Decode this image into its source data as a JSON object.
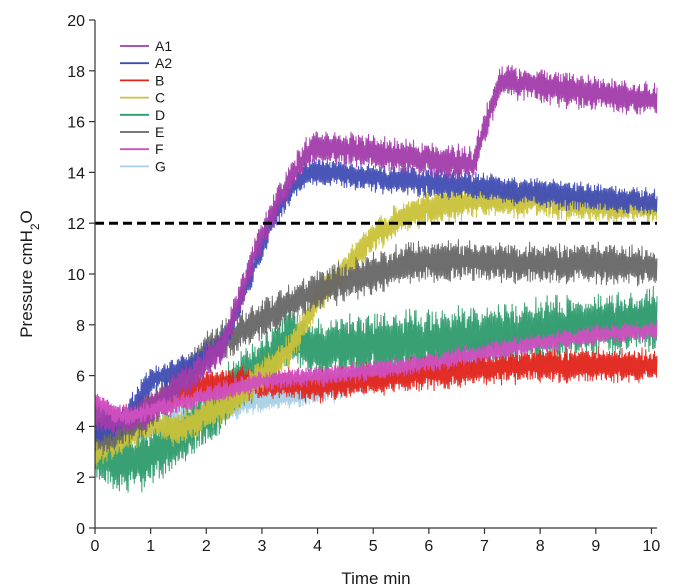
{
  "chart_data": {
    "type": "line",
    "xlabel": "Time min",
    "ylabel": "Pressure cmH",
    "ylabel_sub": "2",
    "ylabel_tail": "O",
    "xlim": [
      0,
      10.1
    ],
    "ylim": [
      0,
      20
    ],
    "xticks": [
      "0",
      "1",
      "2",
      "3",
      "4",
      "5",
      "6",
      "7",
      "8",
      "9",
      "10"
    ],
    "yticks": [
      "0",
      "2",
      "4",
      "6",
      "8",
      "10",
      "12",
      "14",
      "16",
      "18",
      "20"
    ],
    "reference_line": {
      "y": 12,
      "style": "dashed",
      "color": "#000000"
    },
    "legend_position": "top-left",
    "series": [
      {
        "name": "A1",
        "color": "#a23bab",
        "amp": 0.6,
        "hf": 0.35,
        "x": [
          0,
          0.5,
          1.0,
          1.5,
          2.0,
          2.3,
          2.6,
          2.9,
          3.2,
          3.5,
          3.8,
          4.0,
          5.0,
          6.0,
          6.8,
          7.0,
          7.3,
          8.0,
          9.0,
          10.1
        ],
        "y": [
          4.5,
          4.2,
          4.6,
          5.6,
          6.5,
          7.2,
          9.0,
          11.0,
          12.5,
          13.6,
          14.8,
          15.0,
          14.8,
          14.5,
          14.3,
          15.8,
          17.6,
          17.4,
          17.1,
          16.8
        ]
      },
      {
        "name": "A2",
        "color": "#3f4db3",
        "amp": 0.5,
        "hf": 0.3,
        "x": [
          0,
          0.5,
          1.0,
          1.5,
          2.0,
          2.3,
          2.6,
          2.9,
          3.2,
          3.5,
          3.8,
          4.0,
          5.0,
          6.0,
          7.0,
          8.0,
          9.0,
          10.1
        ],
        "y": [
          3.8,
          4.2,
          5.8,
          6.2,
          6.8,
          7.2,
          8.8,
          10.5,
          12.2,
          13.2,
          14.0,
          14.0,
          13.8,
          13.6,
          13.4,
          13.2,
          13.0,
          12.8
        ]
      },
      {
        "name": "B",
        "color": "#e2231a",
        "amp": 0.6,
        "hf": 0.3,
        "x": [
          0,
          0.5,
          1.0,
          1.5,
          2.0,
          3.0,
          4.0,
          5.0,
          6.0,
          7.0,
          8.0,
          9.0,
          10.1
        ],
        "y": [
          3.8,
          4.3,
          4.8,
          5.3,
          5.6,
          5.7,
          5.6,
          5.9,
          6.1,
          6.3,
          6.4,
          6.4,
          6.4
        ]
      },
      {
        "name": "C",
        "color": "#c9c23a",
        "amp": 0.6,
        "hf": 0.35,
        "x": [
          0,
          0.5,
          1.0,
          1.5,
          2.0,
          2.5,
          3.0,
          3.5,
          4.0,
          4.5,
          5.0,
          5.5,
          6.0,
          7.0,
          8.0,
          9.0,
          10.1
        ],
        "y": [
          3.0,
          3.5,
          4.2,
          3.8,
          4.5,
          5.0,
          6.0,
          7.0,
          9.0,
          10.2,
          11.5,
          12.2,
          12.6,
          12.9,
          12.9,
          12.7,
          12.6
        ]
      },
      {
        "name": "D",
        "color": "#2e9b6b",
        "amp": 1.1,
        "hf": 0.6,
        "x": [
          0,
          0.5,
          1.0,
          1.5,
          2.0,
          2.5,
          3.0,
          3.5,
          4.0,
          5.0,
          6.0,
          7.0,
          8.0,
          9.0,
          10.1
        ],
        "y": [
          3.0,
          2.6,
          2.8,
          3.6,
          4.5,
          5.5,
          6.5,
          7.5,
          7.0,
          7.2,
          7.3,
          7.5,
          7.8,
          8.0,
          8.2
        ]
      },
      {
        "name": "E",
        "color": "#666666",
        "amp": 0.7,
        "hf": 0.4,
        "x": [
          0,
          0.5,
          1.0,
          1.5,
          2.0,
          2.5,
          3.0,
          3.5,
          4.0,
          4.5,
          5.0,
          5.5,
          6.0,
          7.0,
          8.0,
          9.0,
          10.1
        ],
        "y": [
          3.6,
          3.9,
          4.6,
          5.8,
          7.0,
          7.6,
          8.2,
          8.8,
          9.4,
          9.7,
          10.0,
          10.4,
          10.5,
          10.5,
          10.4,
          10.4,
          10.3
        ]
      },
      {
        "name": "F",
        "color": "#d04fc0",
        "amp": 0.35,
        "hf": 0.25,
        "x": [
          0,
          0.5,
          1.0,
          2.0,
          3.0,
          4.0,
          5.0,
          6.0,
          7.0,
          8.0,
          9.0,
          10.1
        ],
        "y": [
          5.0,
          4.4,
          4.6,
          5.2,
          5.8,
          6.0,
          6.2,
          6.5,
          6.9,
          7.3,
          7.6,
          7.8
        ]
      },
      {
        "name": "G",
        "color": "#a9cfe6",
        "amp": 0.5,
        "hf": 0.35,
        "x": [
          0,
          0.5,
          1.0,
          2.0,
          3.0,
          4.0,
          5.0,
          6.0,
          7.0,
          8.0,
          9.0,
          10.1
        ],
        "y": [
          3.4,
          3.6,
          4.0,
          4.6,
          5.1,
          5.4,
          5.9,
          6.4,
          7.0,
          7.6,
          8.2,
          8.6
        ]
      }
    ]
  }
}
